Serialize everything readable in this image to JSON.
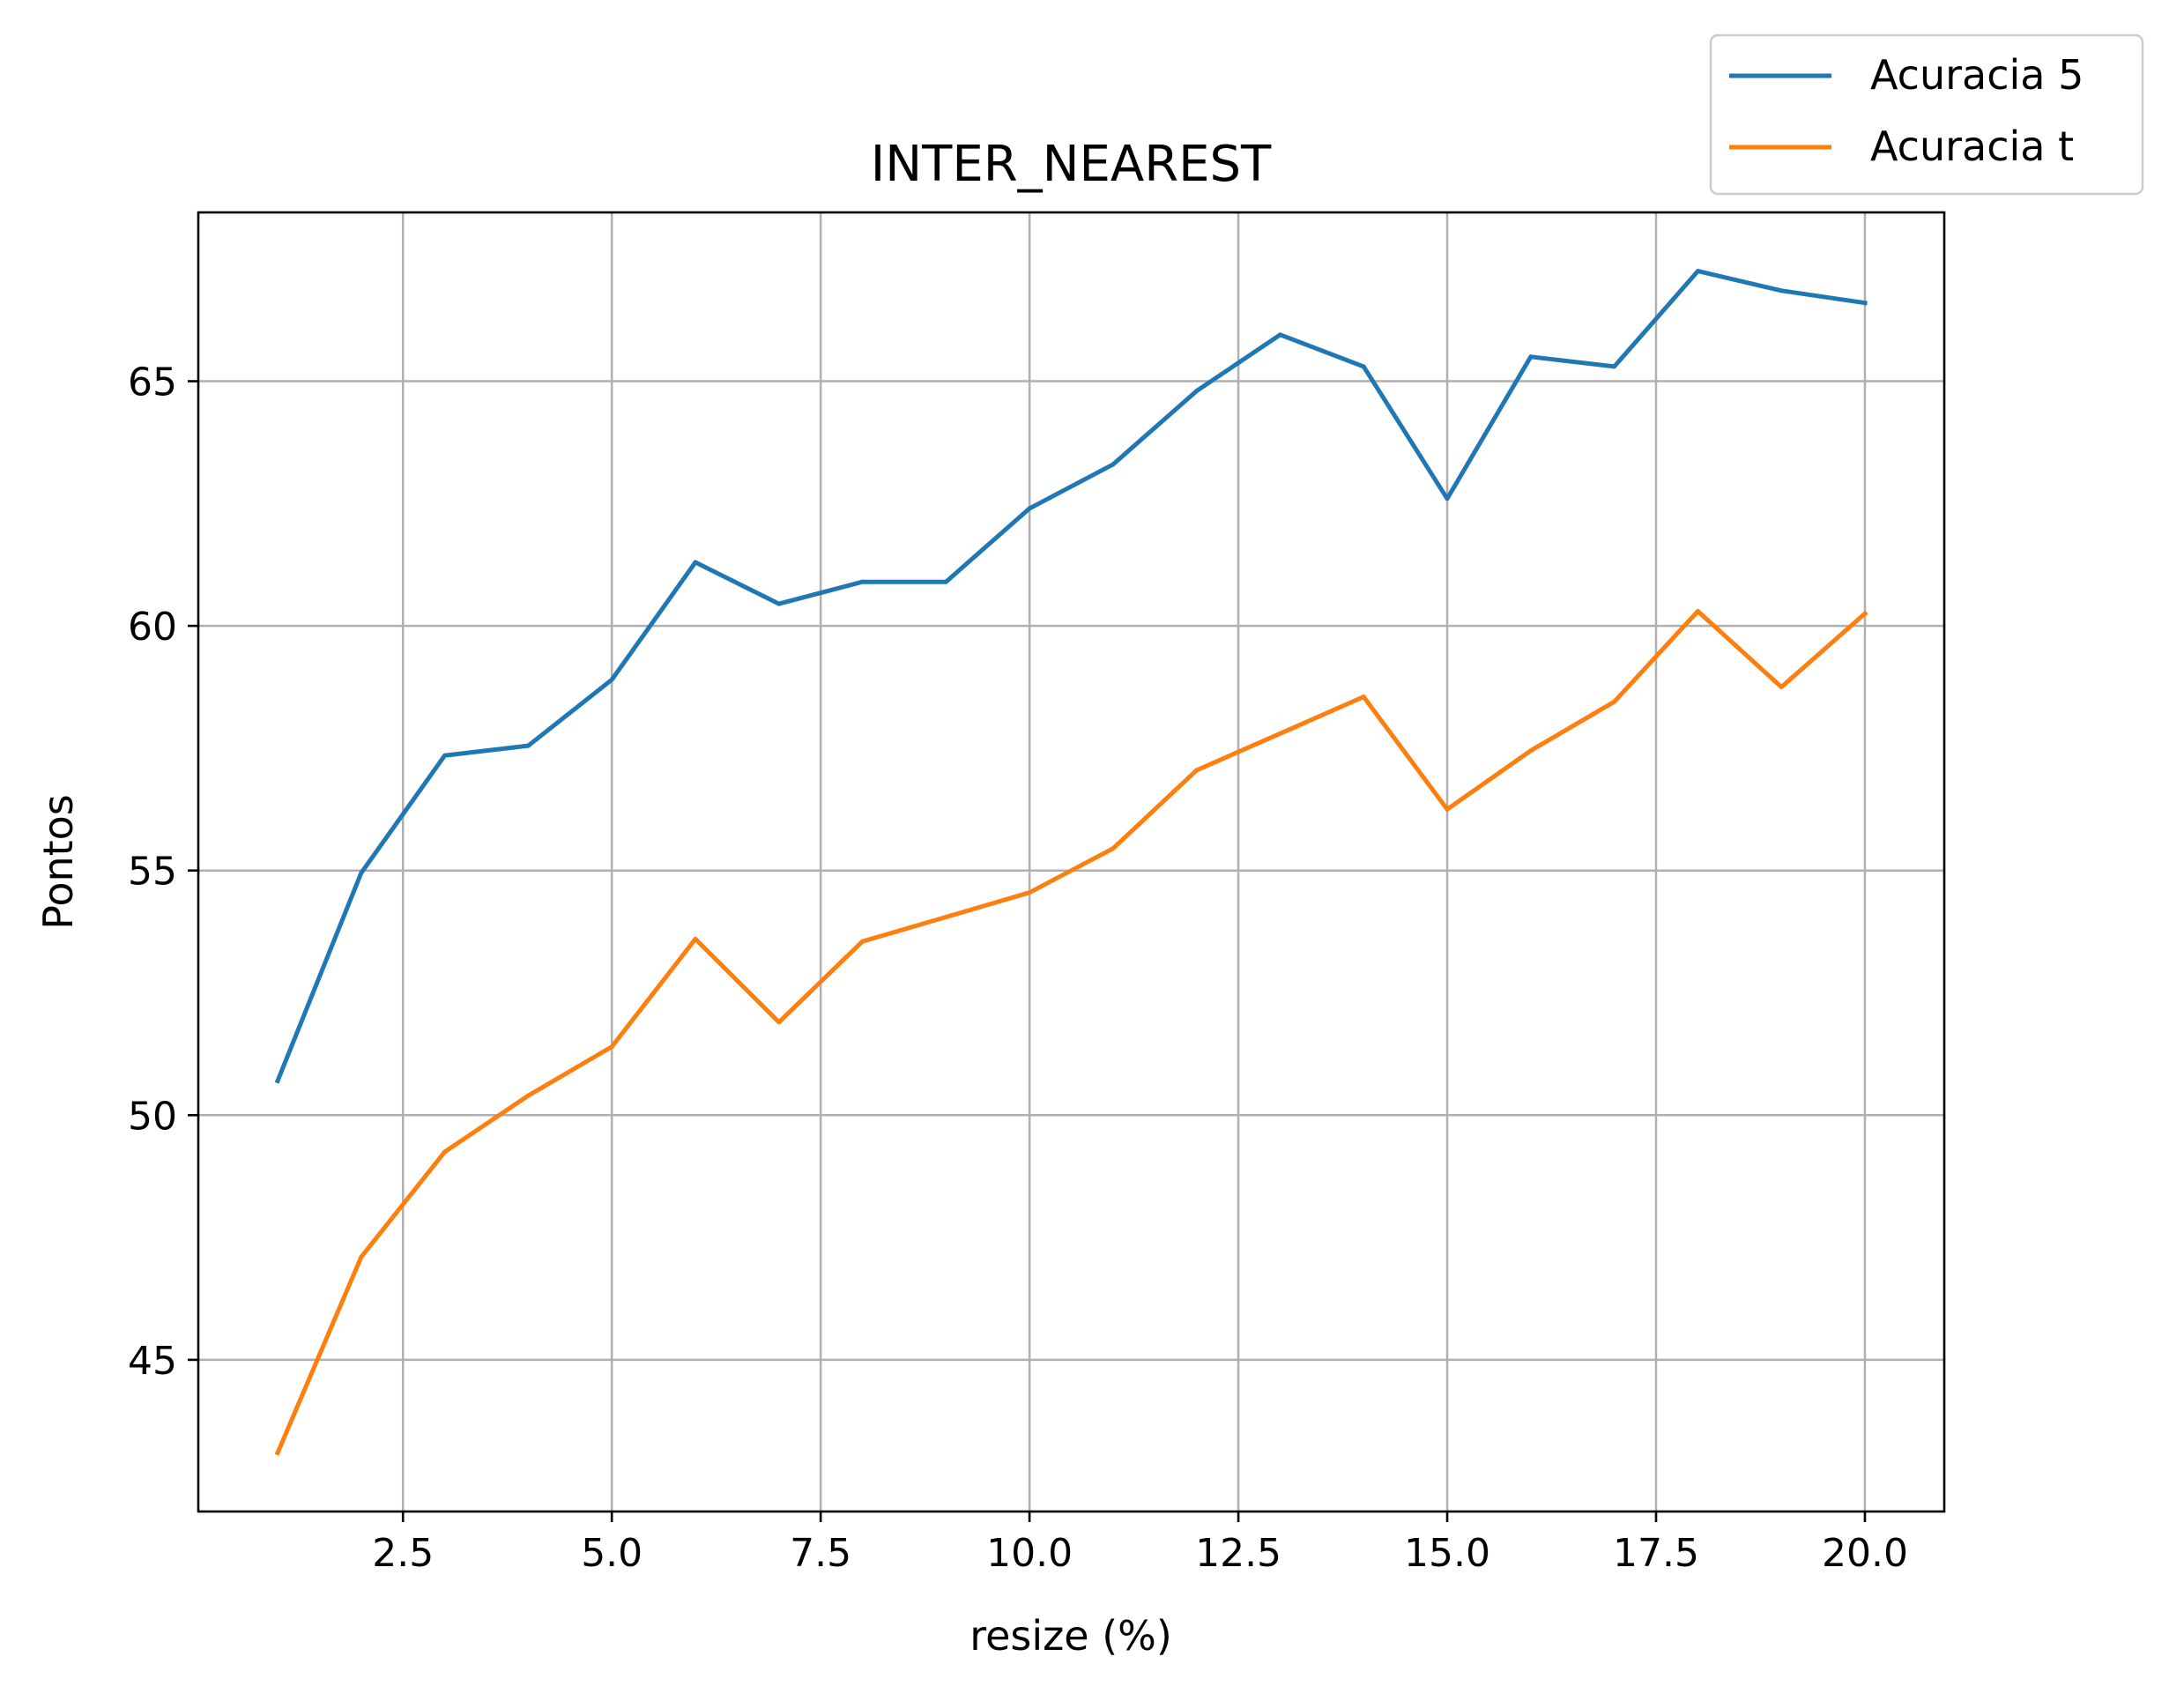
{
  "chart_data": {
    "type": "line",
    "title": "INTER_NEAREST",
    "xlabel": "resize (%)",
    "ylabel": "Pontos",
    "x": [
      1,
      2,
      3,
      4,
      5,
      6,
      7,
      8,
      9,
      10,
      11,
      12,
      13,
      14,
      15,
      16,
      17,
      18,
      19,
      20
    ],
    "series": [
      {
        "name": "Acuracia 5",
        "color": "#1f77b4",
        "values": [
          50.7,
          54.95,
          57.35,
          57.55,
          58.9,
          61.3,
          60.45,
          60.9,
          60.9,
          62.4,
          63.3,
          64.8,
          65.95,
          65.3,
          62.6,
          65.5,
          65.3,
          67.25,
          66.85,
          66.6
        ]
      },
      {
        "name": "Acuracia t",
        "color": "#ff7f0e",
        "values": [
          43.1,
          47.1,
          49.25,
          50.4,
          51.4,
          53.6,
          51.9,
          53.55,
          54.05,
          54.55,
          55.45,
          57.05,
          57.8,
          58.55,
          56.25,
          57.45,
          58.45,
          60.3,
          58.75,
          60.25
        ]
      }
    ],
    "xlim": [
      0.05,
      20.95
    ],
    "ylim": [
      41.9,
      68.45
    ],
    "xticks": [
      2.5,
      5.0,
      7.5,
      10.0,
      12.5,
      15.0,
      17.5,
      20.0
    ],
    "xtick_labels": [
      "2.5",
      "5.0",
      "7.5",
      "10.0",
      "12.5",
      "15.0",
      "17.5",
      "20.0"
    ],
    "yticks": [
      45,
      50,
      55,
      60,
      65
    ],
    "ytick_labels": [
      "45",
      "50",
      "55",
      "60",
      "65"
    ],
    "grid": true,
    "legend_position": "top-right"
  }
}
